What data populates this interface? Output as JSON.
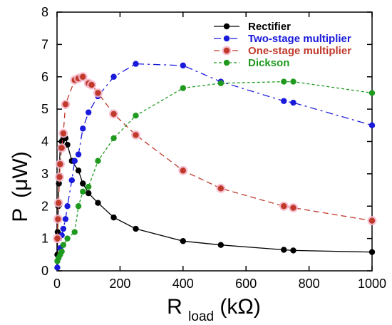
{
  "chart_data": {
    "type": "line",
    "xlabel_main": "R",
    "xlabel_sub": "load",
    "xlabel_unit": " (kΩ)",
    "ylabel_main": "P",
    "ylabel_unit": "(μW)",
    "xlim": [
      0,
      1000
    ],
    "ylim": [
      0,
      8
    ],
    "x_ticks": [
      0,
      200,
      400,
      600,
      800,
      1000
    ],
    "y_ticks": [
      0,
      1,
      2,
      3,
      4,
      5,
      6,
      7,
      8
    ],
    "grid": false,
    "legend_position": "top-right",
    "series": [
      {
        "name": "Rectifier",
        "color": "#000000",
        "dash": "solid",
        "x": [
          1,
          2,
          4,
          6,
          8,
          10,
          15,
          20,
          27,
          33,
          47,
          68,
          82,
          100,
          130,
          180,
          250,
          400,
          520,
          720,
          750,
          1000
        ],
        "y": [
          0.5,
          1.2,
          2.0,
          2.7,
          3.3,
          3.8,
          4.0,
          4.1,
          4.1,
          3.9,
          3.4,
          3.1,
          2.7,
          2.4,
          2.1,
          1.65,
          1.3,
          0.92,
          0.8,
          0.65,
          0.63,
          0.58
        ]
      },
      {
        "name": "Two-stage multiplier",
        "color": "#1a1adc",
        "dash": "long-dash",
        "x": [
          1,
          5,
          10,
          15,
          20,
          27,
          33,
          47,
          56,
          68,
          82,
          100,
          130,
          180,
          250,
          400,
          520,
          720,
          750,
          1000
        ],
        "y": [
          0.1,
          0.4,
          0.7,
          1.1,
          1.3,
          1.6,
          2.0,
          2.8,
          3.4,
          3.6,
          4.4,
          4.9,
          5.4,
          6.0,
          6.4,
          6.35,
          5.85,
          5.25,
          5.2,
          4.5
        ]
      },
      {
        "name": "One-stage multiplier",
        "color": "#c0392b",
        "dash": "dash",
        "x": [
          1,
          3,
          5,
          8,
          10,
          15,
          20,
          27,
          56,
          68,
          82,
          100,
          110,
          130,
          180,
          250,
          400,
          520,
          720,
          750,
          1000
        ],
        "y": [
          1.0,
          1.6,
          2.1,
          2.9,
          3.3,
          3.8,
          4.25,
          5.15,
          5.9,
          5.95,
          6.0,
          5.8,
          5.75,
          5.5,
          4.85,
          4.2,
          3.1,
          2.55,
          2.0,
          1.95,
          1.55
        ]
      },
      {
        "name": "Dickson",
        "color": "#1f9a1f",
        "dash": "short-dash",
        "x": [
          1,
          5,
          10,
          15,
          20,
          33,
          56,
          68,
          82,
          100,
          130,
          180,
          250,
          400,
          520,
          720,
          750,
          1000
        ],
        "y": [
          0.3,
          0.4,
          0.5,
          0.6,
          0.8,
          1.0,
          1.2,
          2.0,
          2.45,
          2.6,
          3.4,
          4.1,
          4.8,
          5.65,
          5.8,
          5.85,
          5.85,
          5.5
        ]
      }
    ]
  }
}
